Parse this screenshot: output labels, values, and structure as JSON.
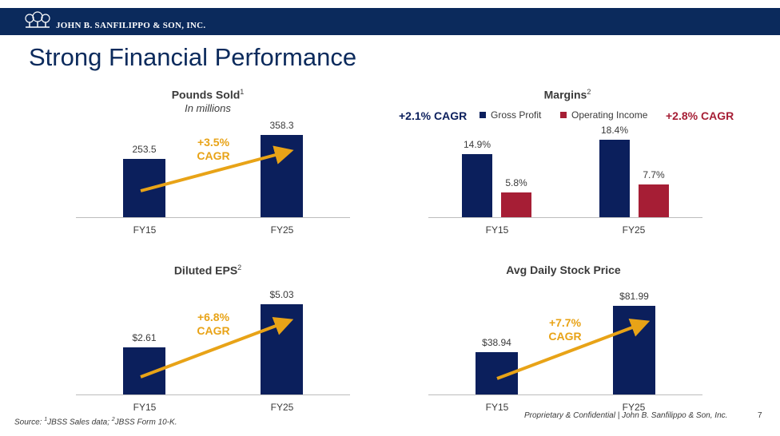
{
  "header": {
    "company": "JOHN B. SANFILIPPO & SON, INC.",
    "title": "Strong Financial Performance"
  },
  "colors": {
    "navy": "#0b1f5c",
    "red": "#a61e35",
    "gold": "#e8a317"
  },
  "chart_data": [
    {
      "id": "pounds",
      "type": "bar",
      "title": "Pounds Sold",
      "title_sup": "1",
      "subtitle": "In millions",
      "categories": [
        "FY15",
        "FY25"
      ],
      "values": [
        253.5,
        358.3
      ],
      "value_labels": [
        "253.5",
        "358.3"
      ],
      "cagr_line1": "+3.5%",
      "cagr_line2": "CAGR"
    },
    {
      "id": "margins",
      "type": "bar",
      "title": "Margins",
      "title_sup": "2",
      "categories": [
        "FY15",
        "FY25"
      ],
      "series": [
        {
          "name": "Gross Profit",
          "values": [
            14.9,
            18.4
          ],
          "value_labels": [
            "14.9%",
            "18.4%"
          ],
          "cagr": "+2.1% CAGR"
        },
        {
          "name": "Operating Income",
          "values": [
            5.8,
            7.7
          ],
          "value_labels": [
            "5.8%",
            "7.7%"
          ],
          "cagr": "+2.8% CAGR"
        }
      ]
    },
    {
      "id": "eps",
      "type": "bar",
      "title": "Diluted EPS",
      "title_sup": "2",
      "categories": [
        "FY15",
        "FY25"
      ],
      "values": [
        2.61,
        5.03
      ],
      "value_labels": [
        "$2.61",
        "$5.03"
      ],
      "cagr_line1": "+6.8%",
      "cagr_line2": "CAGR"
    },
    {
      "id": "stock",
      "type": "bar",
      "title": "Avg Daily Stock Price",
      "categories": [
        "FY15",
        "FY25"
      ],
      "values": [
        38.94,
        81.99
      ],
      "value_labels": [
        "$38.94",
        "$81.99"
      ],
      "cagr_line1": "+7.7%",
      "cagr_line2": "CAGR"
    }
  ],
  "footer": {
    "source_prefix": "Source: ",
    "source_sup1": "1",
    "source_mid": "JBSS Sales data; ",
    "source_sup2": "2",
    "source_end": "JBSS Form 10-K.",
    "confidential": "Proprietary & Confidential | John B. Sanfilippo & Son, Inc.",
    "page": "7"
  }
}
